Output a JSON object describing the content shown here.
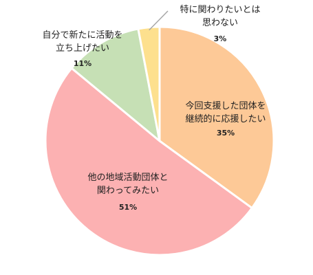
{
  "chart_data": {
    "type": "pie",
    "title": "",
    "slices": [
      {
        "label_lines": [
          "今回支援した団体を",
          "継続的に応援したい"
        ],
        "value": 35,
        "percent_label": "35%",
        "color": "#FDC997"
      },
      {
        "label_lines": [
          "他の地域活動団体と",
          "関わってみたい"
        ],
        "value": 51,
        "percent_label": "51%",
        "color": "#FCB1B2"
      },
      {
        "label_lines": [
          "自分で新たに活動を",
          "立ち上げたい"
        ],
        "value": 11,
        "percent_label": "11%",
        "color": "#C6E0B5"
      },
      {
        "label_lines": [
          "特に関わりたいとは",
          "思わない"
        ],
        "value": 3,
        "percent_label": "3%",
        "color": "#FDE08E"
      }
    ],
    "start_angle_deg": 0,
    "direction": "clockwise",
    "slice_border_color": "#ffffff",
    "leader_line_color": "#A6A6A6",
    "legend": "none"
  }
}
